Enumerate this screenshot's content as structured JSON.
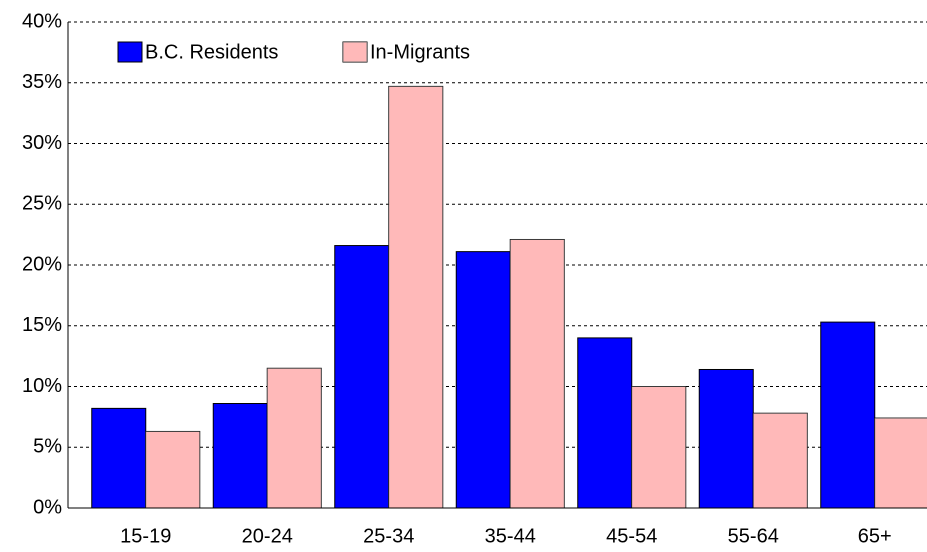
{
  "chart_data": {
    "type": "bar",
    "categories": [
      "15-19",
      "20-24",
      "25-34",
      "35-44",
      "45-54",
      "55-64",
      "65+"
    ],
    "series": [
      {
        "name": "B.C. Residents",
        "color": "#0000ff",
        "values": [
          8.2,
          8.6,
          21.6,
          21.1,
          14.0,
          11.4,
          15.3
        ]
      },
      {
        "name": "In-Migrants",
        "color": "#ff8080",
        "values": [
          6.3,
          11.5,
          34.7,
          22.1,
          10.0,
          7.8,
          7.4
        ]
      }
    ],
    "ylim": [
      0,
      40
    ],
    "yticks": [
      {
        "value": 0,
        "label": "0%"
      },
      {
        "value": 5,
        "label": "5%"
      },
      {
        "value": 10,
        "label": "10%"
      },
      {
        "value": 15,
        "label": "15%"
      },
      {
        "value": 20,
        "label": "20%"
      },
      {
        "value": 25,
        "label": "25%"
      },
      {
        "value": 30,
        "label": "30%"
      },
      {
        "value": 35,
        "label": "35%"
      },
      {
        "value": 40,
        "label": "40%"
      }
    ],
    "grid": true,
    "legend": "top-left"
  }
}
